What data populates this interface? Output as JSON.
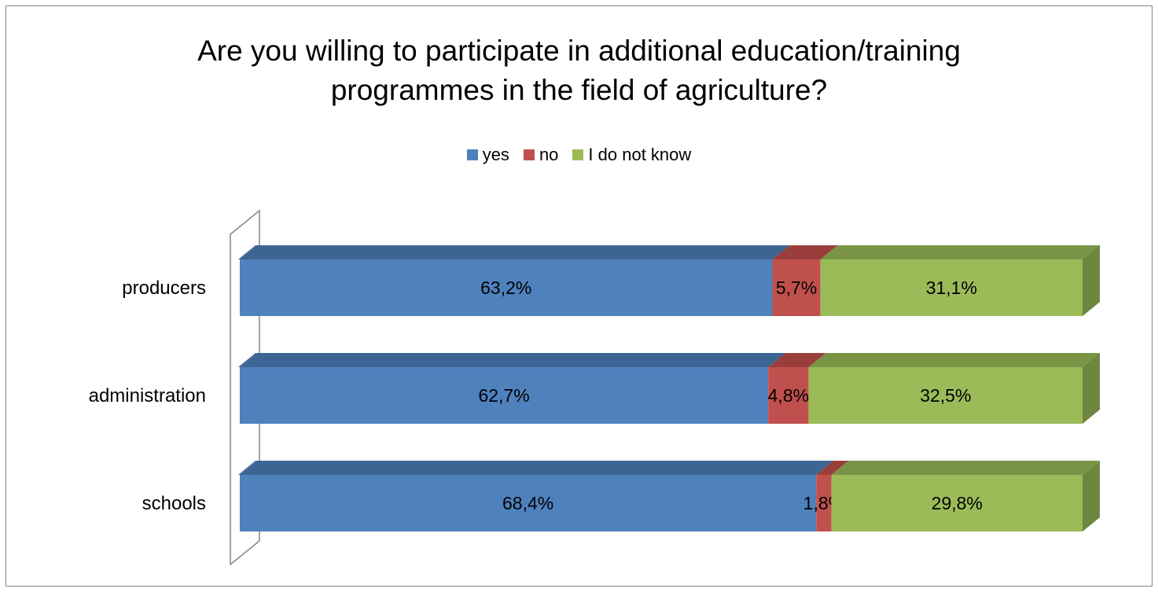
{
  "chart_data": {
    "type": "bar",
    "orientation": "horizontal",
    "stacked": "100%",
    "style": "3d",
    "title": "Are you willing to participate in additional education/training programmes in the field of agriculture?",
    "title_lines": [
      "Are you willing to participate in additional education/training",
      "programmes in the field of agriculture?"
    ],
    "xlabel": "",
    "ylabel": "",
    "legend_position": "top",
    "grid": false,
    "xlim": [
      0,
      100
    ],
    "categories": [
      "producers",
      "administration",
      "schools"
    ],
    "series": [
      {
        "name": "yes",
        "color": "#4F81BD",
        "top_color": "#3D6594",
        "side_color": "#3A5F8A",
        "values": [
          63.2,
          62.7,
          68.4
        ],
        "labels": [
          "63,2%",
          "62,7%",
          "68,4%"
        ]
      },
      {
        "name": "no",
        "color": "#C0504D",
        "top_color": "#9A3E3C",
        "side_color": "#8E3937",
        "values": [
          5.7,
          4.8,
          1.8
        ],
        "labels": [
          "5,7%",
          "4,8%",
          "1,8%"
        ]
      },
      {
        "name": "I do not know",
        "color": "#9BBB59",
        "top_color": "#7A9446",
        "side_color": "#6E863F",
        "values": [
          31.1,
          32.5,
          29.8
        ],
        "labels": [
          "31,1%",
          "32,5%",
          "29,8%"
        ]
      }
    ]
  }
}
